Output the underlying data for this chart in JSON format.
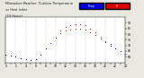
{
  "title_left": "Milwaukee Weather  Outdoor Temperature",
  "title_mid": "vs Heat Index",
  "title_right": "(24 Hours)",
  "background_color": "#e8e8e0",
  "plot_bg_color": "#ffffff",
  "xlim": [
    0,
    24
  ],
  "ylim": [
    55,
    95
  ],
  "yticks": [
    60,
    65,
    70,
    75,
    80,
    85,
    90
  ],
  "hours": [
    0,
    1,
    2,
    3,
    4,
    5,
    6,
    7,
    8,
    9,
    10,
    11,
    12,
    13,
    14,
    15,
    16,
    17,
    18,
    19,
    20,
    21,
    22,
    23,
    24
  ],
  "temp": [
    62,
    61,
    60,
    59,
    58,
    57,
    58,
    62,
    67,
    72,
    77,
    81,
    83,
    84,
    85,
    85,
    84,
    82,
    79,
    76,
    73,
    70,
    67,
    65,
    63
  ],
  "heat_index": [
    62,
    61,
    60,
    59,
    58,
    57,
    58,
    62,
    67,
    72,
    77,
    83,
    86,
    88,
    89,
    89,
    88,
    85,
    82,
    78,
    74,
    71,
    67,
    65,
    63
  ],
  "legend_temp_color": "#0000dd",
  "legend_hi_color": "#dd0000",
  "grid_color": "#bbbbbb",
  "grid_style": "--",
  "grid_lw": 0.3,
  "dot_markersize": 1.5,
  "color_black_thresh": 63,
  "color_blue_thresh": 78,
  "color_black": "#000000",
  "color_blue": "#0000cc",
  "color_red": "#cc0000"
}
